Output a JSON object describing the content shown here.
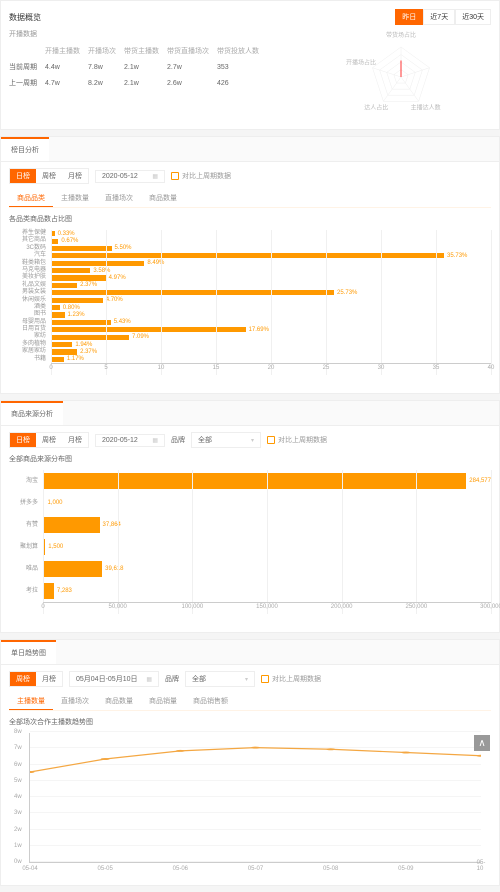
{
  "colors": {
    "accent": "#f60",
    "bar": "#f90",
    "line": "#f4a742",
    "grid": "#f0f0f0",
    "axis": "#ccc",
    "bg": "#fff",
    "page_bg": "#f5f5f5",
    "text": "#666",
    "muted": "#999"
  },
  "header": {
    "title": "数据概览",
    "range": [
      {
        "label": "昨日",
        "active": true
      },
      {
        "label": "近7天",
        "active": false
      },
      {
        "label": "近30天",
        "active": false
      }
    ]
  },
  "table": {
    "subtitle": "开播数据",
    "cols": [
      "",
      "开播主播数",
      "开播场次",
      "带货主播数",
      "带货直播场次",
      "带货投放人数"
    ],
    "rows": [
      [
        "当前周期",
        "4.4w",
        "7.8w",
        "2.1w",
        "2.7w",
        "353"
      ],
      [
        "上一周期",
        "4.7w",
        "8.2w",
        "2.1w",
        "2.6w",
        "426"
      ]
    ]
  },
  "radar": {
    "axes": [
      "带货场占比",
      "",
      "主播达人数",
      "达人占比",
      "开播场占比"
    ],
    "value_pct": [
      55,
      0,
      0,
      0,
      0
    ],
    "color": "#f33"
  },
  "section1": {
    "tab": "榜目分析",
    "seg": [
      "日榜",
      "周榜",
      "月榜"
    ],
    "seg_active": 0,
    "date": "2020-05-12",
    "compare": "对比上周期数据",
    "tabs2": [
      "商品品类",
      "主播数量",
      "直播场次",
      "商品数量"
    ],
    "tabs2_active": 0,
    "chart": {
      "title": "各品类商品数占比图",
      "type": "horizontal_bar",
      "xmax": 40,
      "xticks": [
        0,
        5,
        10,
        15,
        20,
        25,
        30,
        35,
        40
      ],
      "bars": [
        {
          "label": "养生保健",
          "v": 0.33
        },
        {
          "label": "其它商品",
          "v": 0.67
        },
        {
          "label": "3C数码",
          "v": 5.5
        },
        {
          "label": "汽车",
          "v": 35.73
        },
        {
          "label": "鞋类箱包",
          "v": 8.49
        },
        {
          "label": "马克电器",
          "v": 3.58
        },
        {
          "label": "美妆护肤",
          "v": 4.97
        },
        {
          "label": "礼品文娱",
          "v": 2.37
        },
        {
          "label": "男装女装",
          "v": 25.73
        },
        {
          "label": "休闲娱乐",
          "v": 4.7
        },
        {
          "label": "酒类",
          "v": 0.8
        },
        {
          "label": "图书",
          "v": 1.23
        },
        {
          "label": "母婴用品",
          "v": 5.43
        },
        {
          "label": "日用百货",
          "v": 17.69
        },
        {
          "label": "家纺",
          "v": 7.09
        },
        {
          "label": "多肉植物",
          "v": 1.94
        },
        {
          "label": "家居家纺",
          "v": 2.37
        },
        {
          "label": "书籍",
          "v": 1.17
        }
      ]
    }
  },
  "section2": {
    "tab": "商品来源分析",
    "seg": [
      "日榜",
      "周榜",
      "月榜"
    ],
    "seg_active": 0,
    "date": "2020-05-12",
    "brand_label": "品牌",
    "brand_value": "全部",
    "compare": "对比上周期数据",
    "chart": {
      "title": "全部商品来源分布图",
      "type": "horizontal_bar",
      "xmax": 300000,
      "xticks": [
        0,
        50000,
        100000,
        150000,
        200000,
        250000,
        300000
      ],
      "bars": [
        {
          "label": "淘宝",
          "v": 284577
        },
        {
          "label": "拼多多",
          "v": 1000
        },
        {
          "label": "有赞",
          "v": 37864
        },
        {
          "label": "聚划算",
          "v": 1500
        },
        {
          "label": "唯品",
          "v": 39618
        },
        {
          "label": "考拉",
          "v": 7283
        }
      ]
    }
  },
  "section3": {
    "tab": "单日趋势图",
    "seg": [
      "周榜",
      "月榜"
    ],
    "seg_active": 0,
    "date": "05月04日-05月10日",
    "brand_label": "品牌",
    "brand_value": "全部",
    "compare": "对比上周期数据",
    "tabs2": [
      "主播数量",
      "直播场次",
      "商品数量",
      "商品销量",
      "商品销售额"
    ],
    "tabs2_active": 0,
    "chart": {
      "title": "全部场次合作主播数趋势图",
      "type": "line",
      "ymax": 8,
      "yticks": [
        0,
        1,
        2,
        3,
        4,
        5,
        6,
        7,
        8
      ],
      "y_suffix": "w",
      "xticks": [
        "05-04",
        "05-05",
        "05-06",
        "05-07",
        "05-08",
        "05-09",
        "05-10"
      ],
      "points": [
        5.6,
        6.4,
        6.9,
        7.1,
        7.0,
        6.8,
        6.6
      ]
    }
  }
}
